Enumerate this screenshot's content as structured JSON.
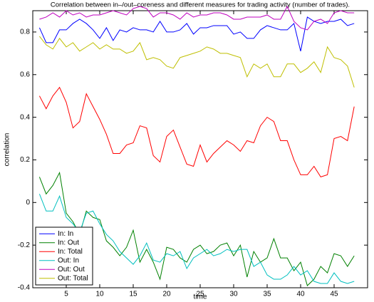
{
  "chart_data": {
    "type": "line",
    "title": "Correlation between in–/out–coreness and different measures for trading activity (number of trades).",
    "x_label": "time",
    "y_label": "correlation",
    "x": [
      1,
      2,
      3,
      4,
      5,
      6,
      7,
      8,
      9,
      10,
      11,
      12,
      13,
      14,
      15,
      16,
      17,
      18,
      19,
      20,
      21,
      22,
      23,
      24,
      25,
      26,
      27,
      28,
      29,
      30,
      31,
      32,
      33,
      34,
      35,
      36,
      37,
      38,
      39,
      40,
      41,
      42,
      43,
      44,
      45,
      46,
      47,
      48
    ],
    "xlim": [
      0,
      50
    ],
    "xticks": [
      5,
      10,
      15,
      20,
      25,
      30,
      35,
      40,
      45
    ],
    "ylim": [
      -0.4,
      0.9
    ],
    "yticks": [
      -0.4,
      -0.2,
      0,
      0.2,
      0.4,
      0.6,
      0.8
    ],
    "legend_position": "lower left",
    "series": [
      {
        "name": "In: In",
        "color": "#0000ff",
        "values": [
          0.82,
          0.75,
          0.75,
          0.81,
          0.81,
          0.84,
          0.86,
          0.84,
          0.81,
          0.77,
          0.82,
          0.76,
          0.81,
          0.8,
          0.82,
          0.81,
          0.81,
          0.8,
          0.85,
          0.8,
          0.8,
          0.81,
          0.84,
          0.79,
          0.82,
          0.82,
          0.83,
          0.83,
          0.83,
          0.79,
          0.8,
          0.77,
          0.77,
          0.81,
          0.83,
          0.82,
          0.81,
          0.81,
          0.84,
          0.71,
          0.87,
          0.85,
          0.84,
          0.85,
          0.85,
          0.86,
          0.83,
          0.84
        ]
      },
      {
        "name": "In: Out",
        "color": "#008000",
        "values": [
          0.12,
          0.04,
          0.08,
          0.14,
          -0.05,
          -0.09,
          -0.15,
          -0.04,
          -0.07,
          -0.08,
          -0.18,
          -0.21,
          -0.25,
          -0.21,
          -0.13,
          -0.28,
          -0.22,
          -0.28,
          -0.36,
          -0.21,
          -0.22,
          -0.26,
          -0.28,
          -0.22,
          -0.2,
          -0.24,
          -0.23,
          -0.2,
          -0.19,
          -0.25,
          -0.2,
          -0.35,
          -0.23,
          -0.28,
          -0.26,
          -0.17,
          -0.26,
          -0.26,
          -0.32,
          -0.28,
          -0.39,
          -0.36,
          -0.3,
          -0.33,
          -0.24,
          -0.25,
          -0.3,
          -0.25
        ]
      },
      {
        "name": "In: Total",
        "color": "#ff0000",
        "values": [
          0.5,
          0.44,
          0.5,
          0.54,
          0.47,
          0.35,
          0.38,
          0.51,
          0.45,
          0.39,
          0.32,
          0.23,
          0.23,
          0.27,
          0.28,
          0.36,
          0.35,
          0.22,
          0.19,
          0.31,
          0.34,
          0.26,
          0.18,
          0.17,
          0.27,
          0.19,
          0.23,
          0.26,
          0.29,
          0.27,
          0.24,
          0.29,
          0.28,
          0.36,
          0.4,
          0.38,
          0.29,
          0.29,
          0.2,
          0.13,
          0.13,
          0.17,
          0.12,
          0.13,
          0.3,
          0.31,
          0.29,
          0.45
        ]
      },
      {
        "name": "Out: In",
        "color": "#00bfbf",
        "values": [
          0.04,
          -0.04,
          -0.04,
          0.03,
          -0.07,
          -0.1,
          -0.14,
          -0.05,
          -0.04,
          -0.1,
          -0.15,
          -0.18,
          -0.23,
          -0.26,
          -0.29,
          -0.25,
          -0.19,
          -0.27,
          -0.28,
          -0.24,
          -0.25,
          -0.23,
          -0.31,
          -0.26,
          -0.24,
          -0.22,
          -0.25,
          -0.24,
          -0.22,
          -0.23,
          -0.22,
          -0.22,
          -0.3,
          -0.28,
          -0.34,
          -0.36,
          -0.36,
          -0.34,
          -0.3,
          -0.34,
          -0.32,
          -0.37,
          -0.38,
          -0.38,
          -0.33,
          -0.37,
          -0.38,
          -0.37
        ]
      },
      {
        "name": "Out: Out",
        "color": "#bf00bf",
        "values": [
          0.86,
          0.87,
          0.89,
          0.87,
          0.9,
          0.88,
          0.89,
          0.87,
          0.88,
          0.88,
          0.89,
          0.9,
          0.89,
          0.88,
          0.91,
          0.92,
          0.91,
          0.87,
          0.89,
          0.89,
          0.88,
          0.86,
          0.89,
          0.87,
          0.88,
          0.88,
          0.89,
          0.89,
          0.88,
          0.86,
          0.86,
          0.87,
          0.87,
          0.87,
          0.88,
          0.86,
          0.86,
          0.92,
          0.85,
          0.82,
          0.81,
          0.85,
          0.86,
          0.84,
          0.89,
          0.9,
          0.89,
          0.89
        ]
      },
      {
        "name": "Out: Total",
        "color": "#bfbf00",
        "values": [
          0.78,
          0.74,
          0.72,
          0.77,
          0.73,
          0.75,
          0.71,
          0.73,
          0.75,
          0.72,
          0.74,
          0.72,
          0.72,
          0.7,
          0.71,
          0.75,
          0.67,
          0.68,
          0.67,
          0.64,
          0.63,
          0.68,
          0.69,
          0.7,
          0.71,
          0.73,
          0.72,
          0.7,
          0.7,
          0.69,
          0.68,
          0.59,
          0.65,
          0.63,
          0.65,
          0.59,
          0.59,
          0.65,
          0.65,
          0.61,
          0.63,
          0.66,
          0.61,
          0.73,
          0.68,
          0.67,
          0.64,
          0.54
        ]
      }
    ]
  }
}
